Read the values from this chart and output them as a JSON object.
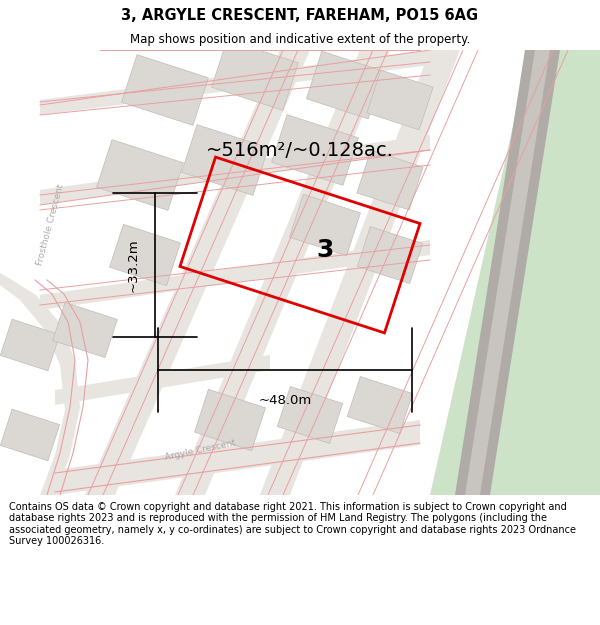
{
  "title": "3, ARGYLE CRESCENT, FAREHAM, PO15 6AG",
  "subtitle": "Map shows position and indicative extent of the property.",
  "area_text": "~516m²/~0.128ac.",
  "width_label": "~48.0m",
  "height_label": "~33.2m",
  "plot_number": "3",
  "footer": "Contains OS data © Crown copyright and database right 2021. This information is subject to Crown copyright and database rights 2023 and is reproduced with the permission of HM Land Registry. The polygons (including the associated geometry, namely x, y co-ordinates) are subject to Crown copyright and database rights 2023 Ordnance Survey 100026316.",
  "bg_color": "#f5f2ee",
  "green1_color": "#cde3c8",
  "green2_color": "#b8d4b4",
  "road_grey1": "#b0aba6",
  "road_grey2": "#c8c4c0",
  "building_fill": "#dbd7d2",
  "building_edge": "#c0bcb8",
  "road_line_color": "#e8a0a0",
  "plot_fill": "none",
  "plot_edge": "#e00000",
  "white": "#ffffff"
}
